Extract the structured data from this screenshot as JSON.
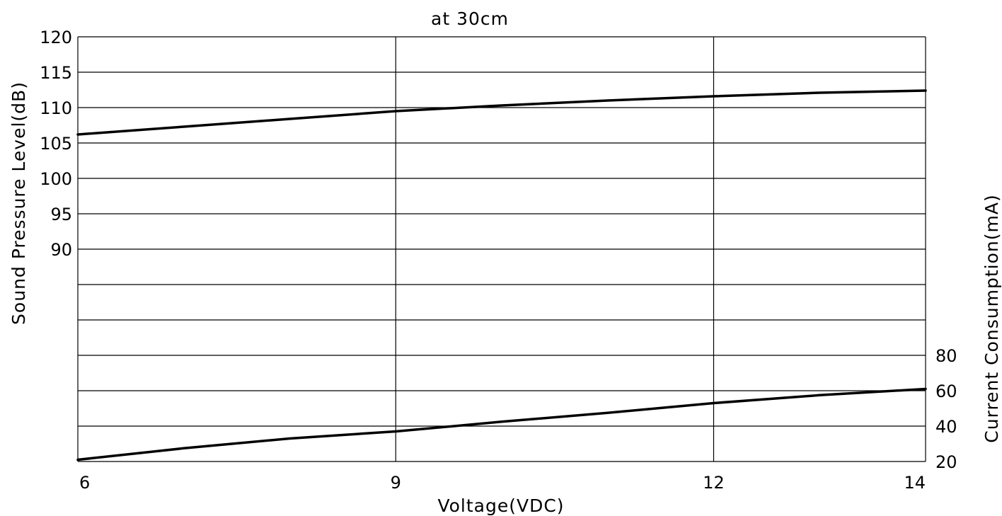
{
  "chart_data": {
    "type": "line",
    "title": "at 30cm",
    "xlabel": "Voltage(VDC)",
    "ylabel_left": "Sound Pressure Level(dB)",
    "ylabel_right": "Current Consumption(mA)",
    "x_ticks": [
      6,
      9,
      12,
      14
    ],
    "xlim": [
      6,
      14
    ],
    "y_left_ticks": [
      90,
      95,
      100,
      105,
      110,
      115,
      120
    ],
    "y_left_lim": [
      60,
      120
    ],
    "y_right_ticks": [
      20,
      40,
      60,
      80
    ],
    "y_right_lim": [
      20,
      260
    ],
    "grid": true,
    "series": [
      {
        "axis": "left",
        "x": [
          6,
          7,
          8,
          9,
          10,
          11,
          12,
          13,
          14
        ],
        "y": [
          106.2,
          107.3,
          108.4,
          109.5,
          110.3,
          111.0,
          111.6,
          112.1,
          112.4
        ]
      },
      {
        "axis": "right",
        "x": [
          6,
          7,
          8,
          9,
          10,
          11,
          12,
          13,
          14
        ],
        "y": [
          21,
          27.5,
          33,
          37,
          42.5,
          47.5,
          53,
          57.5,
          61
        ]
      }
    ],
    "colors": {
      "line": "#000000",
      "grid": "#000000",
      "background": "#ffffff"
    }
  }
}
